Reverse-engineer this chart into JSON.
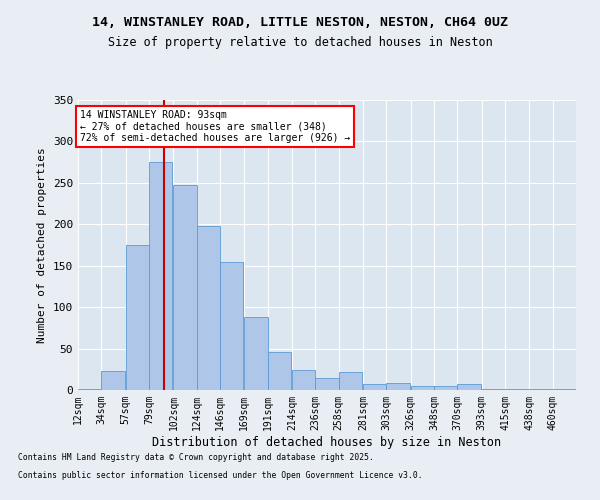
{
  "title1": "14, WINSTANLEY ROAD, LITTLE NESTON, NESTON, CH64 0UZ",
  "title2": "Size of property relative to detached houses in Neston",
  "xlabel": "Distribution of detached houses by size in Neston",
  "ylabel": "Number of detached properties",
  "bar_color": "#aec6e8",
  "bar_edge_color": "#5b9bd5",
  "background_color": "#e8eef4",
  "plot_bg_color": "#dce6f0",
  "grid_color": "#ffffff",
  "vline_color": "#cc0000",
  "vline_x": 93,
  "annotation_text": "14 WINSTANLEY ROAD: 93sqm\n← 27% of detached houses are smaller (348)\n72% of semi-detached houses are larger (926) →",
  "footnote1": "Contains HM Land Registry data © Crown copyright and database right 2025.",
  "footnote2": "Contains public sector information licensed under the Open Government Licence v3.0.",
  "categories": [
    "12sqm",
    "34sqm",
    "57sqm",
    "79sqm",
    "102sqm",
    "124sqm",
    "146sqm",
    "169sqm",
    "191sqm",
    "214sqm",
    "236sqm",
    "258sqm",
    "281sqm",
    "303sqm",
    "326sqm",
    "348sqm",
    "370sqm",
    "393sqm",
    "415sqm",
    "438sqm",
    "460sqm"
  ],
  "bin_starts": [
    12,
    34,
    57,
    79,
    102,
    124,
    146,
    169,
    191,
    214,
    236,
    258,
    281,
    303,
    326,
    348,
    370,
    393,
    415,
    438,
    460
  ],
  "bin_width": 22,
  "values": [
    1,
    23,
    175,
    275,
    247,
    198,
    155,
    88,
    46,
    24,
    14,
    22,
    7,
    8,
    5,
    5,
    7,
    1,
    1,
    1,
    1
  ],
  "ylim": [
    0,
    350
  ],
  "yticks": [
    0,
    50,
    100,
    150,
    200,
    250,
    300,
    350
  ]
}
